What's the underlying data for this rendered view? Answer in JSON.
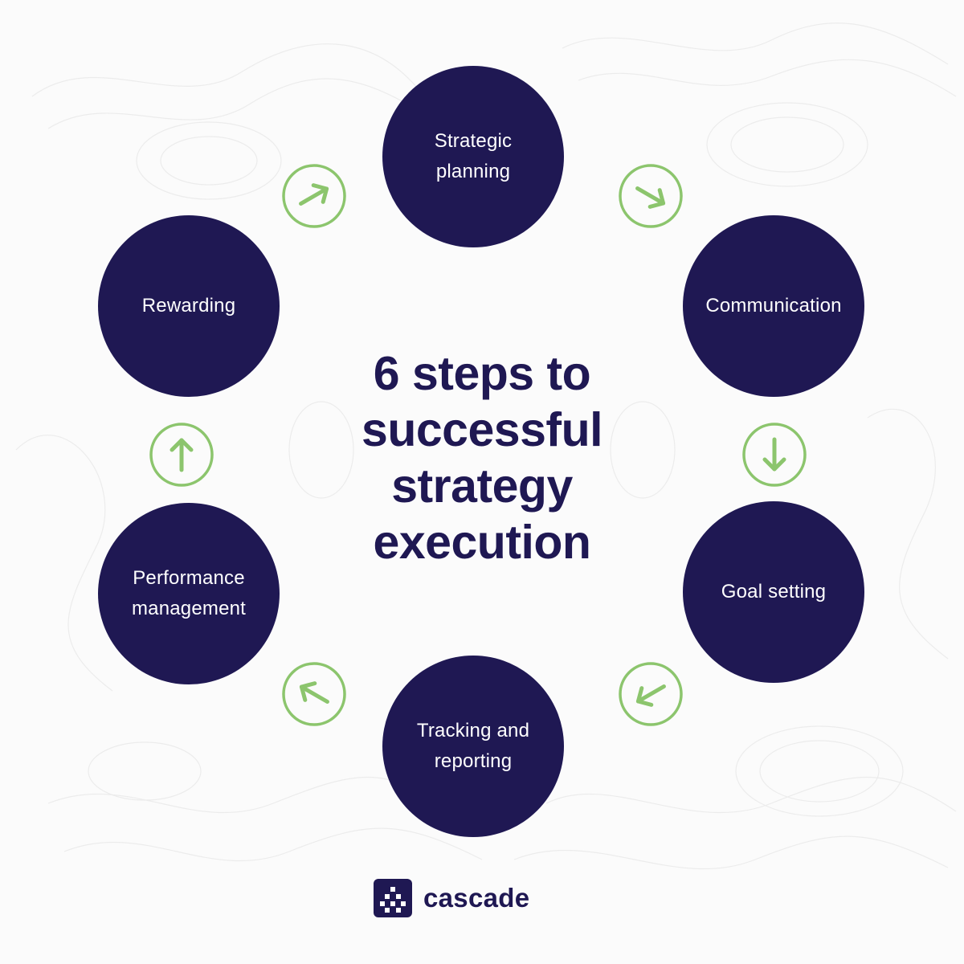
{
  "title": "6 steps to\nsuccessful\nstrategy\nexecution",
  "steps": [
    {
      "id": "strategic-planning",
      "label": "Strategic\nplanning"
    },
    {
      "id": "communication",
      "label": "Communication"
    },
    {
      "id": "goal-setting",
      "label": "Goal setting"
    },
    {
      "id": "tracking-reporting",
      "label": "Tracking and\nreporting"
    },
    {
      "id": "performance-management",
      "label": "Performance\nmanagement"
    },
    {
      "id": "rewarding",
      "label": "Rewarding"
    }
  ],
  "arrows": [
    {
      "icon": "arrow-up-right-icon"
    },
    {
      "icon": "arrow-down-right-icon"
    },
    {
      "icon": "arrow-down-icon"
    },
    {
      "icon": "arrow-down-left-icon"
    },
    {
      "icon": "arrow-up-left-icon"
    },
    {
      "icon": "arrow-up-icon"
    }
  ],
  "brand": {
    "name": "cascade",
    "logo_icon": "cascade-logo-icon"
  },
  "colors": {
    "circle": "#1f1853",
    "arrow": "#8cc56d",
    "title": "#1f1853",
    "background": "#fbfbfb"
  }
}
